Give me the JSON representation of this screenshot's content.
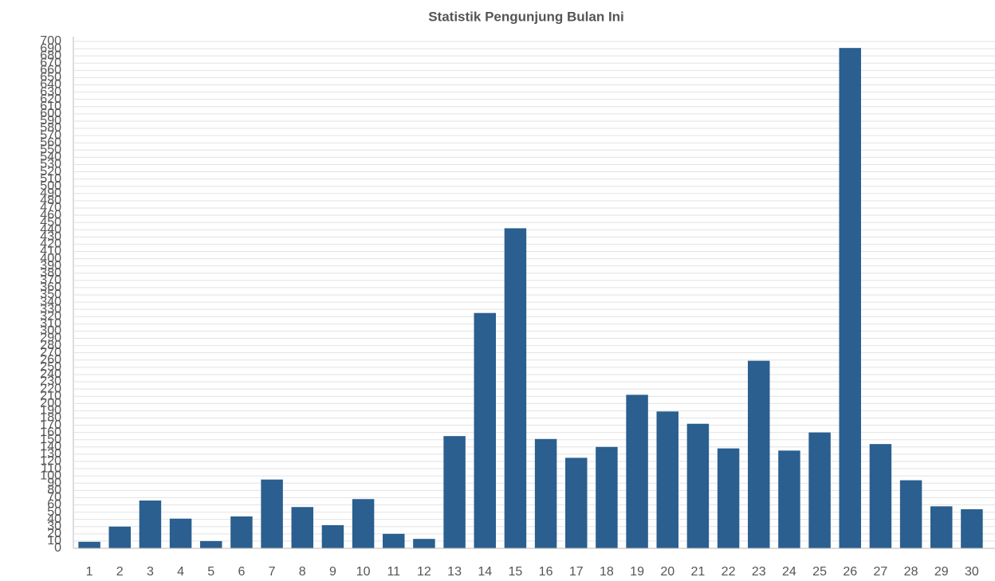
{
  "chart_data": {
    "type": "bar",
    "title": "Statistik Pengunjung Bulan Ini",
    "categories": [
      "1",
      "2",
      "3",
      "4",
      "5",
      "6",
      "7",
      "8",
      "9",
      "10",
      "11",
      "12",
      "13",
      "14",
      "15",
      "16",
      "17",
      "18",
      "19",
      "20",
      "21",
      "22",
      "23",
      "24",
      "25",
      "26",
      "27",
      "28",
      "29",
      "30"
    ],
    "values": [
      9,
      30,
      66,
      41,
      10,
      44,
      95,
      57,
      32,
      68,
      20,
      13,
      155,
      325,
      442,
      151,
      125,
      140,
      212,
      189,
      172,
      138,
      259,
      135,
      160,
      691,
      144,
      94,
      58,
      54
    ],
    "color": "#2a5f8f",
    "ylim": [
      0,
      700
    ],
    "yticks": [
      0,
      10,
      20,
      30,
      40,
      50,
      60,
      70,
      80,
      90,
      100,
      110,
      120,
      130,
      140,
      150,
      160,
      170,
      180,
      190,
      200,
      210,
      220,
      230,
      240,
      250,
      260,
      270,
      280,
      290,
      300,
      310,
      320,
      330,
      340,
      350,
      360,
      370,
      380,
      390,
      400,
      410,
      420,
      430,
      440,
      450,
      460,
      470,
      480,
      490,
      500,
      510,
      520,
      530,
      540,
      550,
      560,
      570,
      580,
      590,
      600,
      610,
      620,
      630,
      640,
      650,
      660,
      670,
      680,
      690,
      700
    ],
    "grid": true
  }
}
